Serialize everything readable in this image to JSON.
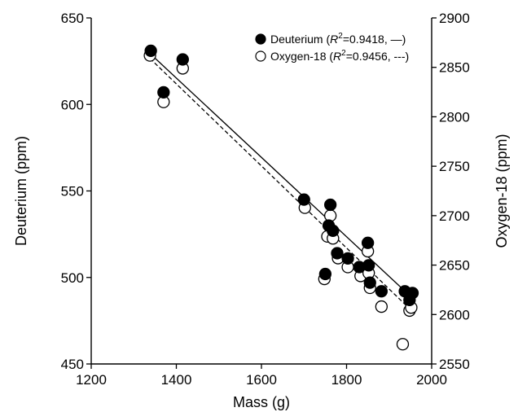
{
  "chart_data": {
    "type": "scatter",
    "xlabel": "Mass (g)",
    "ylabel": "Deuterium (ppm)",
    "y2label": "Oxygen-18 (ppm)",
    "xlim": [
      1200,
      2000
    ],
    "ylim": [
      450,
      650
    ],
    "y2lim": [
      2550,
      2900
    ],
    "xticks": [
      "1200",
      "1400",
      "1600",
      "1800",
      "2000"
    ],
    "yticks": [
      "450",
      "500",
      "550",
      "600",
      "650"
    ],
    "y2ticks": [
      "2550",
      "2600",
      "2650",
      "2700",
      "2750",
      "2800",
      "2850",
      "2900"
    ],
    "grid": false,
    "legend_position": "top-right",
    "series": [
      {
        "name": "Deuterium",
        "legend_r2": "=0.9418, —)",
        "marker": "filled-circle",
        "axis": "left",
        "x": [
          1340,
          1370,
          1415,
          1700,
          1758,
          1762,
          1768,
          1778,
          1750,
          1803,
          1830,
          1850,
          1852,
          1855,
          1882,
          1937,
          1948,
          1955
        ],
        "y": [
          631,
          607,
          626,
          545,
          530,
          542,
          527,
          514,
          502,
          511,
          506,
          520,
          507,
          497,
          492,
          492,
          487,
          491
        ],
        "fit": {
          "x": [
            1340,
            1955
          ],
          "y": [
            629,
            488
          ]
        }
      },
      {
        "name": "Oxygen-18",
        "legend_r2": "=0.9456, ---)",
        "marker": "open-circle",
        "axis": "right",
        "x": [
          1338,
          1370,
          1415,
          1702,
          1755,
          1762,
          1768,
          1780,
          1748,
          1803,
          1833,
          1850,
          1852,
          1855,
          1882,
          1932,
          1948,
          1952
        ],
        "y": [
          2862,
          2815,
          2849,
          2708,
          2679,
          2700,
          2677,
          2657,
          2636,
          2648,
          2639,
          2664,
          2642,
          2627,
          2608,
          2570,
          2604,
          2607
        ],
        "fit": {
          "x": [
            1338,
            1955
          ],
          "y": [
            2859,
            2603
          ]
        }
      }
    ]
  }
}
